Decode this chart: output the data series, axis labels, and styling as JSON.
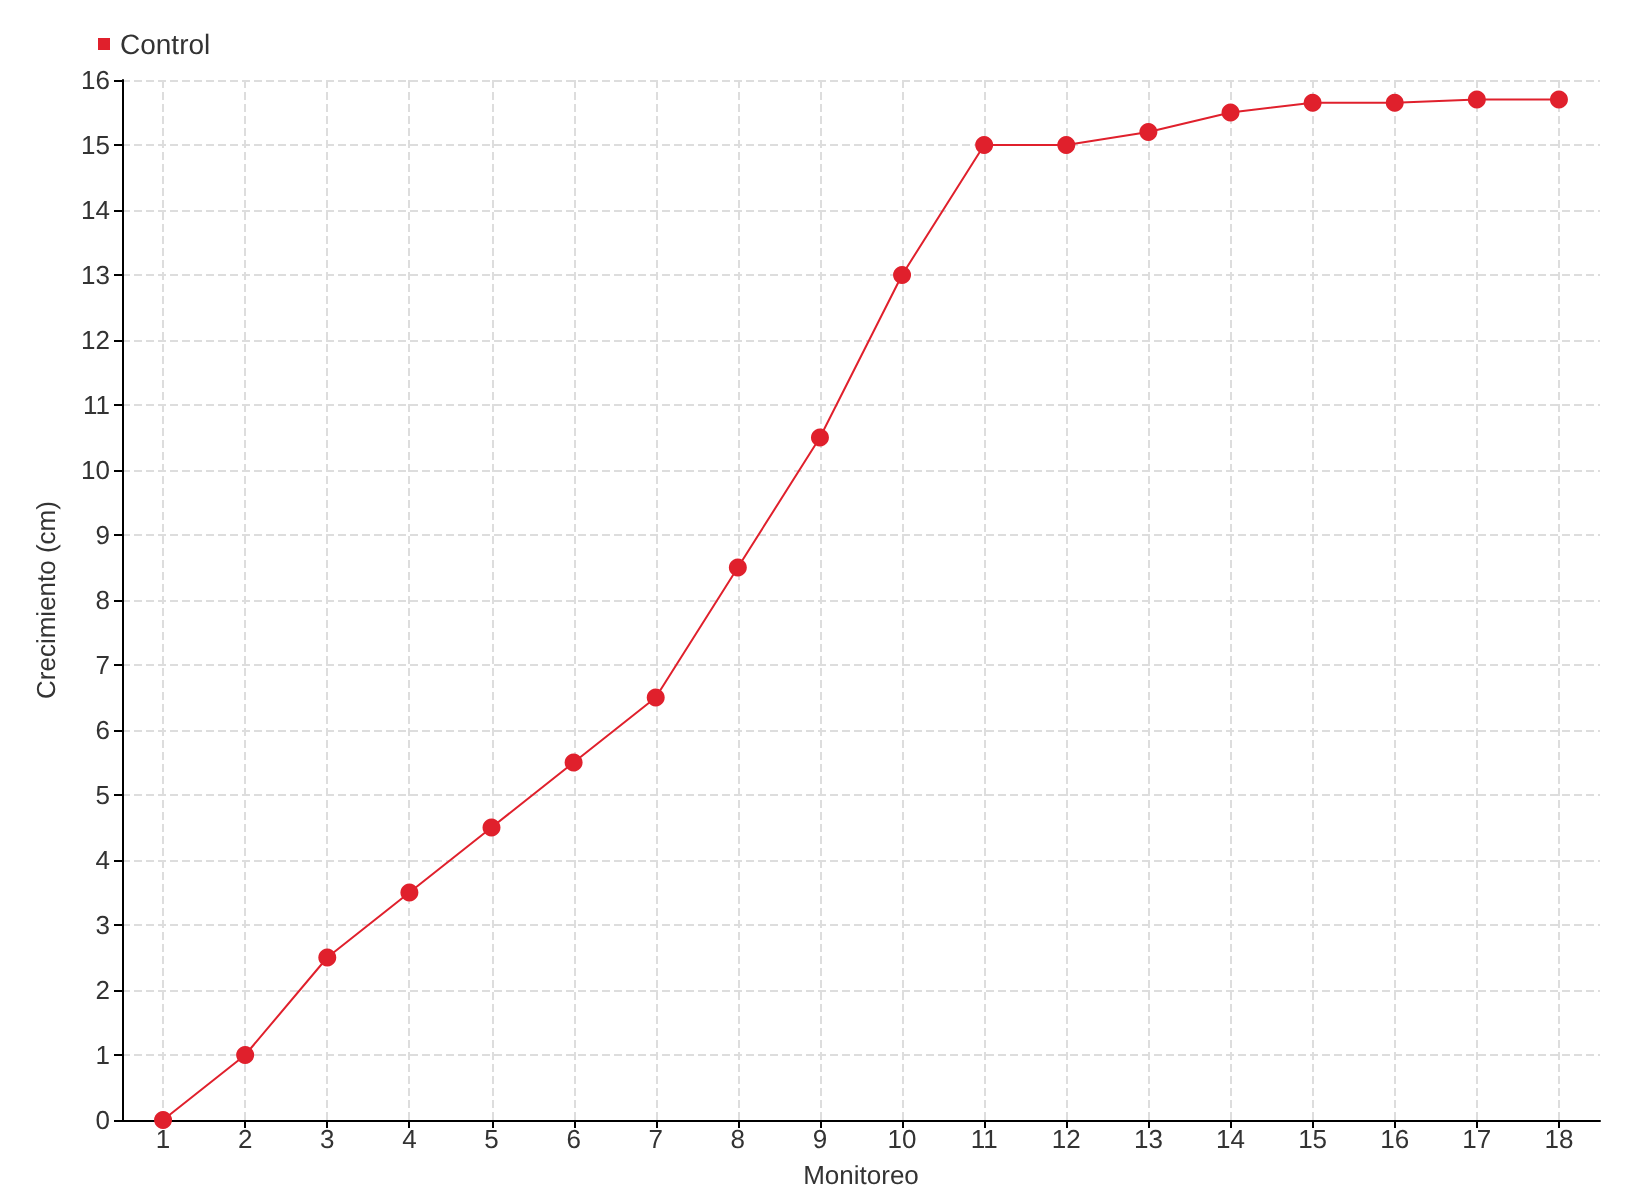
{
  "chart_data": {
    "type": "line",
    "xlabel": "Monitoreo",
    "ylabel": "Crecimiento (cm)",
    "x": [
      1,
      2,
      3,
      4,
      5,
      6,
      7,
      8,
      9,
      10,
      11,
      12,
      13,
      14,
      15,
      16,
      17,
      18
    ],
    "series": [
      {
        "name": "Control",
        "color": "#e0202c",
        "values": [
          0,
          1,
          2.5,
          3.5,
          4.5,
          5.5,
          6.5,
          8.5,
          10.5,
          13,
          15,
          15,
          15.2,
          15.5,
          15.65,
          15.65,
          15.7,
          15.7
        ]
      }
    ],
    "xlim": [
      0.5,
      18.5
    ],
    "xticks": [
      1,
      2,
      3,
      4,
      5,
      6,
      7,
      8,
      9,
      10,
      11,
      12,
      13,
      14,
      15,
      16,
      17,
      18
    ],
    "ylim": [
      0,
      16
    ],
    "yticks": [
      0,
      1,
      2,
      3,
      4,
      5,
      6,
      7,
      8,
      9,
      10,
      11,
      12,
      13,
      14,
      15,
      16
    ],
    "grid": true,
    "legend": "top left",
    "marker": "circle",
    "line_style": "solid"
  }
}
